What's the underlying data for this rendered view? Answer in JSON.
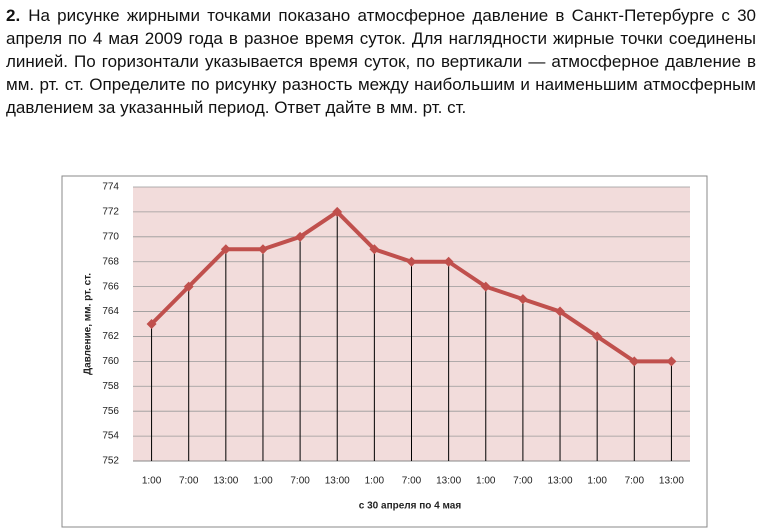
{
  "problem": {
    "number": "2.",
    "text": "На рисунке жирными точками показано атмосферное давление в Санкт-Петербурге с 30 апреля по 4 мая 2009 года в разное время суток. Для наглядности жирные точки соединены линией. По горизонтали указывается время суток, по вертикали — атмосферное давление в мм. рт. ст. Определите по рисунку разность между наибольшим и наименьшим атмосферным давлением за указанный период. Ответ дайте в мм. рт. ст."
  },
  "chart_data": {
    "type": "line",
    "categories": [
      "1:00",
      "7:00",
      "13:00",
      "1:00",
      "7:00",
      "13:00",
      "1:00",
      "7:00",
      "13:00",
      "1:00",
      "7:00",
      "13:00",
      "1:00",
      "7:00",
      "13:00"
    ],
    "values": [
      763,
      766,
      769,
      769,
      770,
      772,
      769,
      768,
      768,
      766,
      765,
      764,
      762,
      760,
      760
    ],
    "color": "#c0504d",
    "ylim": [
      752,
      774
    ],
    "yticks": [
      752,
      754,
      756,
      758,
      760,
      762,
      764,
      766,
      768,
      770,
      772,
      774
    ],
    "grid": true,
    "x_label": "с 30 апреля по 4 мая",
    "y_label": "Давление, мм. рт. ст."
  }
}
